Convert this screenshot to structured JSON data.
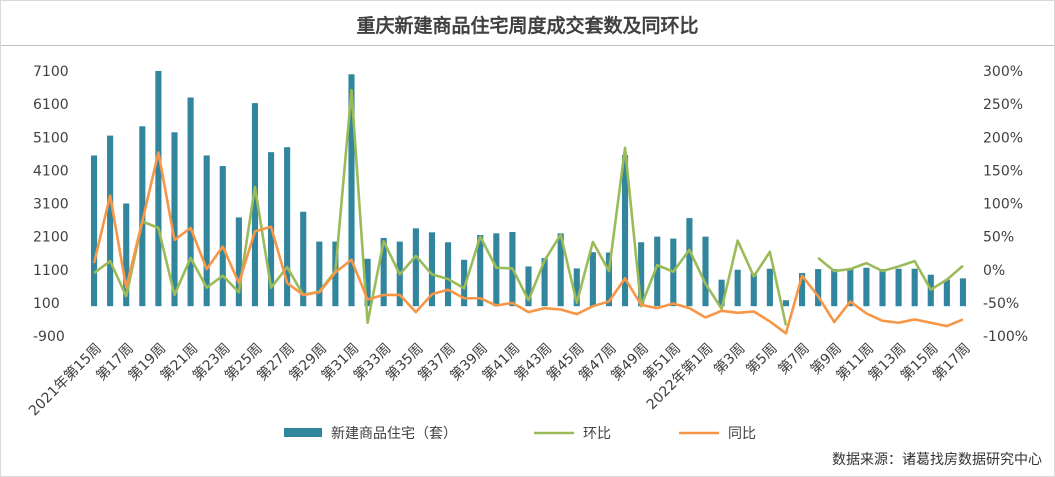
{
  "title": "重庆新建商品住宅周度成交套数及同环比",
  "source": "数据来源：诸葛找房数据研究中心",
  "chart_data": {
    "type": "bar+line",
    "left_axis": {
      "min": -900,
      "max": 7100,
      "ticks": [
        -900,
        100,
        1100,
        2100,
        3100,
        4100,
        5100,
        6100,
        7100
      ]
    },
    "right_axis": {
      "min": -100,
      "max": 300,
      "ticks": [
        "-100%",
        "-50%",
        "0%",
        "50%",
        "100%",
        "150%",
        "200%",
        "250%",
        "300%"
      ]
    },
    "x_labels": [
      "2021年第15周",
      "第17周",
      "第19周",
      "第21周",
      "第23周",
      "第25周",
      "第27周",
      "第29周",
      "第31周",
      "第33周",
      "第35周",
      "第37周",
      "第39周",
      "第41周",
      "第43周",
      "第45周",
      "第47周",
      "第49周",
      "第51周",
      "2022年第1周",
      "第3周",
      "第5周",
      "第7周",
      "第9周",
      "第11周",
      "第13周",
      "第15周",
      "第17周"
    ],
    "series": [
      {
        "name": "新建商品住宅（套）",
        "type": "bar",
        "color": "#31859c",
        "axis": "left",
        "values": [
          4550,
          5150,
          3100,
          5430,
          7100,
          5250,
          6300,
          4550,
          4230,
          2680,
          6130,
          4650,
          4800,
          2850,
          1950,
          1950,
          7000,
          1430,
          2060,
          1950,
          2350,
          2230,
          1930,
          1400,
          2150,
          2200,
          2240,
          1200,
          1450,
          2200,
          1140,
          1630,
          1620,
          4560,
          1930,
          2100,
          2040,
          2660,
          2100,
          800,
          1100,
          1000,
          1130,
          180,
          1000,
          1120,
          1120,
          1120,
          1160,
          1120,
          1130,
          1130,
          950,
          800,
          840
        ]
      },
      {
        "name": "环比",
        "type": "line",
        "color": "#9bbb59",
        "axis": "right",
        "values": [
          -5,
          13,
          -40,
          73,
          63,
          -38,
          18,
          -27,
          -9,
          -34,
          125,
          -27,
          4,
          -38,
          -33,
          -2,
          271,
          -80,
          43,
          -7,
          21,
          -7,
          -14,
          -28,
          50,
          3,
          2,
          -46,
          14,
          53,
          -50,
          42,
          -2,
          184,
          -55,
          7,
          -3,
          30,
          -21,
          -59,
          44,
          -10,
          27,
          -84,
          null,
          18,
          -2,
          1,
          10,
          -2,
          5,
          13,
          -30,
          -15,
          6
        ]
      },
      {
        "name": "同比",
        "type": "line",
        "color": "#f79646",
        "axis": "right",
        "values": [
          10,
          112,
          -27,
          73,
          177,
          45,
          63,
          1,
          35,
          -20,
          58,
          65,
          -20,
          -38,
          -34,
          -4,
          15,
          -45,
          -38,
          -38,
          -64,
          -37,
          -30,
          -43,
          -43,
          -54,
          -50,
          -64,
          -58,
          -60,
          -67,
          -55,
          -48,
          -13,
          -53,
          -58,
          -51,
          -58,
          -72,
          -62,
          -65,
          -63,
          -78,
          -96,
          -9,
          -40,
          -79,
          -48,
          -66,
          -77,
          -80,
          -75,
          -80,
          -85,
          -75
        ]
      }
    ]
  }
}
